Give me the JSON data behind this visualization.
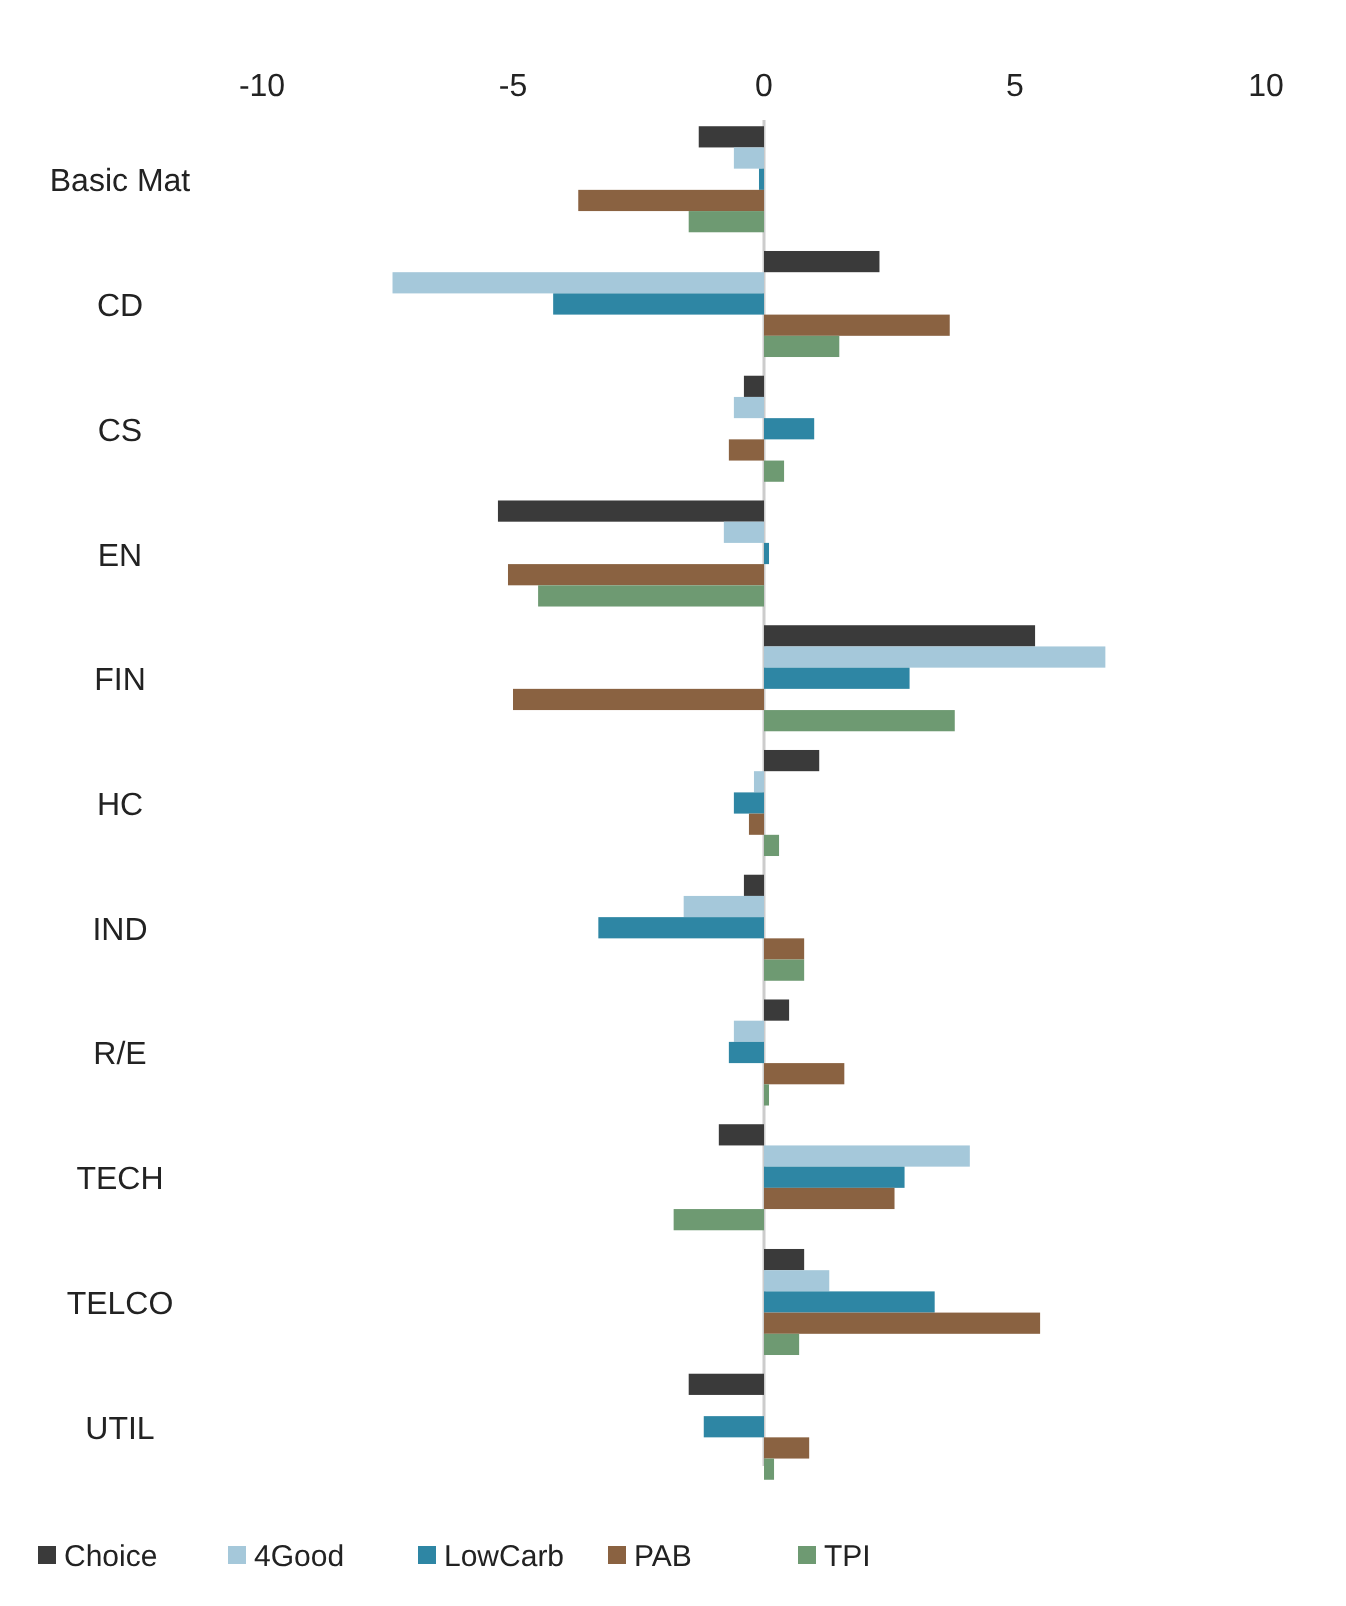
{
  "chart_data": {
    "type": "bar",
    "orientation": "horizontal",
    "categories": [
      "Basic Mat",
      "CD",
      "CS",
      "EN",
      "FIN",
      "HC",
      "IND",
      "R/E",
      "TECH",
      "TELCO",
      "UTIL"
    ],
    "series": [
      {
        "name": "Choice",
        "color": "#3a3a3a",
        "values": [
          -1.3,
          2.3,
          -0.4,
          -5.3,
          5.4,
          1.1,
          -0.4,
          0.5,
          -0.9,
          0.8,
          -1.5
        ]
      },
      {
        "name": "4Good",
        "color": "#a5c8da",
        "values": [
          -0.6,
          -7.4,
          -0.6,
          -0.8,
          6.8,
          -0.2,
          -1.6,
          -0.6,
          4.1,
          1.3,
          0
        ]
      },
      {
        "name": "LowCarb",
        "color": "#2e86a4",
        "values": [
          -0.1,
          -4.2,
          1.0,
          0.1,
          2.9,
          -0.6,
          -3.3,
          -0.7,
          2.8,
          3.4,
          -1.2
        ]
      },
      {
        "name": "PAB",
        "color": "#8a6241",
        "values": [
          -3.7,
          3.7,
          -0.7,
          -5.1,
          -5.0,
          -0.3,
          0.8,
          1.6,
          2.6,
          5.5,
          0.9
        ]
      },
      {
        "name": "TPI",
        "color": "#6e9a72",
        "values": [
          -1.5,
          1.5,
          0.4,
          -4.5,
          3.8,
          0.3,
          0.8,
          0.1,
          -1.8,
          0.7,
          0.2
        ]
      }
    ],
    "xlim": [
      -10,
      10
    ],
    "xticks": [
      -10,
      -5,
      0,
      5,
      10
    ],
    "legend": "bottom"
  }
}
